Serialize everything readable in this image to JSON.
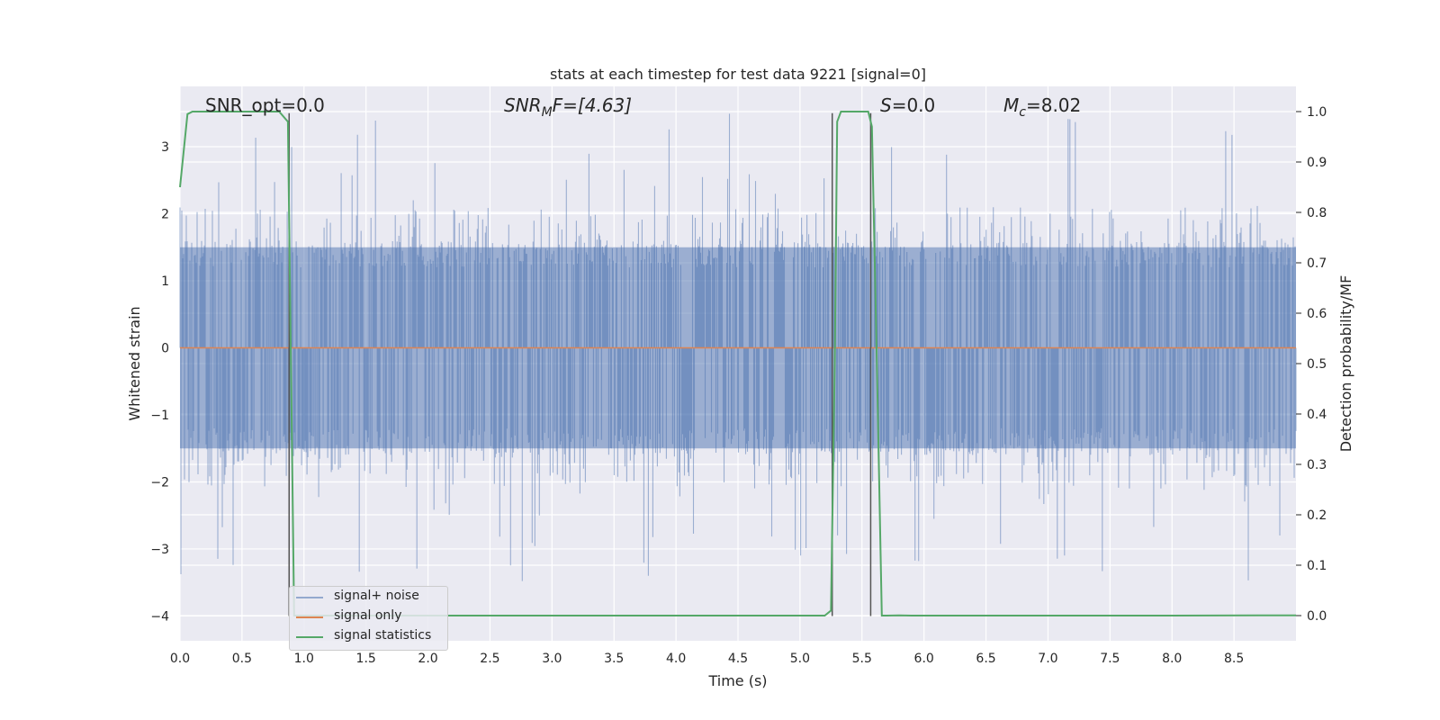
{
  "chart_data": {
    "type": "line",
    "title": "stats at each timestep for test data 9221 [signal=0]",
    "xlabel": "Time (s)",
    "ylabel_left": "Whitened strain",
    "ylabel_right": "Detection probability/MF",
    "xlim": [
      0.0,
      9.0
    ],
    "ylim_left": [
      -4.37,
      3.9
    ],
    "ylim_right": [
      -0.05,
      1.05
    ],
    "x_ticks": [
      "0.0",
      "0.5",
      "1.0",
      "1.5",
      "2.0",
      "2.5",
      "3.0",
      "3.5",
      "4.0",
      "4.5",
      "5.0",
      "5.5",
      "6.0",
      "6.5",
      "7.0",
      "7.5",
      "8.0",
      "8.5"
    ],
    "y_ticks_left": [
      "3",
      "2",
      "1",
      "0",
      "−1",
      "−2",
      "−3",
      "−4"
    ],
    "y_ticks_right": [
      "1.0",
      "0.9",
      "0.8",
      "0.7",
      "0.6",
      "0.5",
      "0.4",
      "0.3",
      "0.2",
      "0.1",
      "0.0"
    ],
    "annotations": {
      "snr_opt": "SNR_opt=0.0",
      "snr_mf_main": "SNR",
      "snr_mf_sub": "M",
      "snr_mf_rest": "F=[4.63]",
      "s_var": "S",
      "s_rest": "=0.0",
      "mc_var": "M",
      "mc_sub": "c",
      "mc_rest": "=8.02"
    },
    "series": [
      {
        "name": "signal+ noise",
        "color": "#4c72b0",
        "noise_band": [
          -1.5,
          1.5
        ],
        "peak_range": [
          -3.6,
          3.5
        ]
      },
      {
        "name": "signal only",
        "color": "#dd8452",
        "x": [
          0.0,
          9.0
        ],
        "y": [
          0.0,
          0.0
        ]
      },
      {
        "name": "signal statistics",
        "color": "#55a868",
        "x": [
          0.0,
          0.06,
          0.1,
          0.3,
          0.5,
          0.65,
          0.8,
          0.87,
          0.92,
          0.95,
          1.1,
          2.0,
          3.0,
          4.0,
          5.0,
          5.2,
          5.25,
          5.28,
          5.3,
          5.33,
          5.5,
          5.55,
          5.58,
          5.62,
          5.66,
          5.7,
          5.8,
          5.9,
          6.0,
          7.0,
          8.0,
          9.0
        ],
        "y": [
          0.85,
          0.995,
          1.0,
          1.0,
          1.0,
          1.0,
          1.0,
          0.98,
          0.0,
          0.0,
          0.0,
          0.0,
          0.0,
          0.0,
          0.0,
          0.0,
          0.01,
          0.5,
          0.98,
          1.0,
          1.0,
          1.0,
          0.97,
          0.5,
          0.0,
          0.0,
          0.0005,
          0.0,
          0.0,
          0.0,
          0.0,
          0.0005
        ]
      }
    ],
    "markers": [
      {
        "x": 0.88,
        "y_top": 3.5,
        "y_bottom": -4.0
      },
      {
        "x": 5.26,
        "y_top": 3.5,
        "y_bottom": -4.0
      },
      {
        "x": 5.57,
        "y_top": 3.5,
        "y_bottom": -4.0
      }
    ],
    "legend": {
      "placement": "lower-left",
      "entries": [
        "signal+ noise",
        "signal only",
        "signal statistics"
      ]
    },
    "grid": true
  }
}
